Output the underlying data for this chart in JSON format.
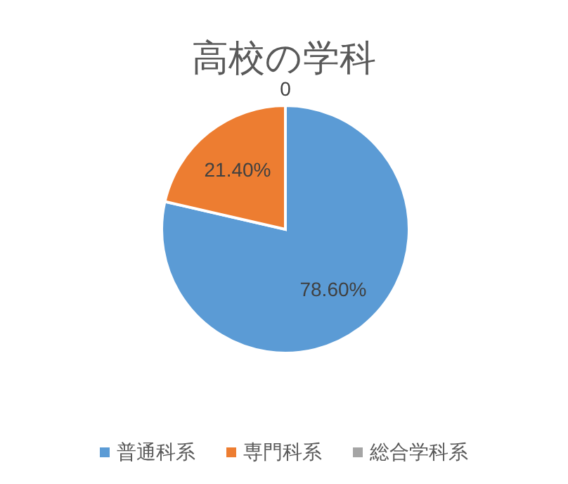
{
  "chart_data": {
    "type": "pie",
    "title": "高校の学科",
    "categories": [
      "普通科系",
      "専門科系",
      "総合学科系"
    ],
    "values": [
      78.6,
      21.4,
      0
    ],
    "colors": [
      "#5b9bd5",
      "#ed7d31",
      "#a5a5a5"
    ],
    "value_labels": [
      "78.60%",
      "21.40%",
      "0"
    ],
    "legend": "bottom"
  }
}
